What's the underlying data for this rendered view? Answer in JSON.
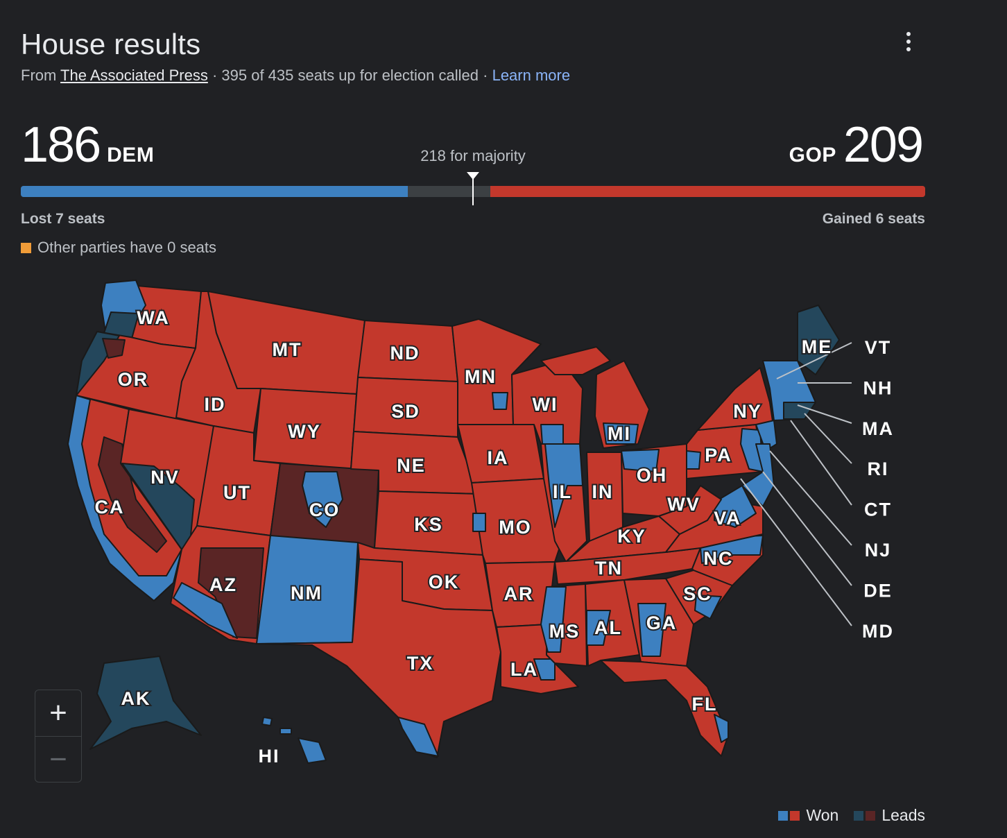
{
  "header": {
    "title": "House results",
    "from_prefix": "From",
    "source": "The Associated Press",
    "called_text": "395 of 435 seats up for election called",
    "learn_more": "Learn more",
    "separator": "·"
  },
  "tally": {
    "dem_seats": "186",
    "dem_label": "DEM",
    "gop_seats": "209",
    "gop_label": "GOP",
    "majority_label": "218 for majority",
    "dem_change": "Lost 7 seats",
    "gop_change": "Gained 6 seats",
    "other_parties": "Other parties have 0 seats"
  },
  "bar": {
    "total_seats": 435,
    "majority": 218,
    "dem": 186,
    "gop": 209,
    "dem_color": "#3d80c0",
    "gop_color": "#c3382c",
    "other_color": "#f09c38"
  },
  "map_colors": {
    "gop_won": "#c3382c",
    "dem_won": "#3d80c0",
    "gop_leads": "#5a2525",
    "dem_leads": "#24475c",
    "background": "#202124",
    "border": "#1a1a1a"
  },
  "states": [
    {
      "abbr": "WA"
    },
    {
      "abbr": "OR"
    },
    {
      "abbr": "CA"
    },
    {
      "abbr": "NV"
    },
    {
      "abbr": "ID"
    },
    {
      "abbr": "MT"
    },
    {
      "abbr": "WY"
    },
    {
      "abbr": "UT"
    },
    {
      "abbr": "AZ"
    },
    {
      "abbr": "CO"
    },
    {
      "abbr": "NM"
    },
    {
      "abbr": "ND"
    },
    {
      "abbr": "SD"
    },
    {
      "abbr": "NE"
    },
    {
      "abbr": "KS"
    },
    {
      "abbr": "OK"
    },
    {
      "abbr": "TX"
    },
    {
      "abbr": "MN"
    },
    {
      "abbr": "IA"
    },
    {
      "abbr": "MO"
    },
    {
      "abbr": "AR"
    },
    {
      "abbr": "LA"
    },
    {
      "abbr": "WI"
    },
    {
      "abbr": "IL"
    },
    {
      "abbr": "MI"
    },
    {
      "abbr": "IN"
    },
    {
      "abbr": "OH"
    },
    {
      "abbr": "KY"
    },
    {
      "abbr": "TN"
    },
    {
      "abbr": "MS"
    },
    {
      "abbr": "AL"
    },
    {
      "abbr": "GA"
    },
    {
      "abbr": "FL"
    },
    {
      "abbr": "SC"
    },
    {
      "abbr": "NC"
    },
    {
      "abbr": "VA"
    },
    {
      "abbr": "WV"
    },
    {
      "abbr": "PA"
    },
    {
      "abbr": "NY"
    },
    {
      "abbr": "ME"
    },
    {
      "abbr": "AK"
    },
    {
      "abbr": "HI"
    }
  ],
  "callouts": [
    "VT",
    "NH",
    "MA",
    "RI",
    "CT",
    "NJ",
    "DE",
    "MD"
  ],
  "zoom": {
    "in": "+",
    "out": "−"
  },
  "legend": {
    "won": "Won",
    "leads": "Leads"
  }
}
